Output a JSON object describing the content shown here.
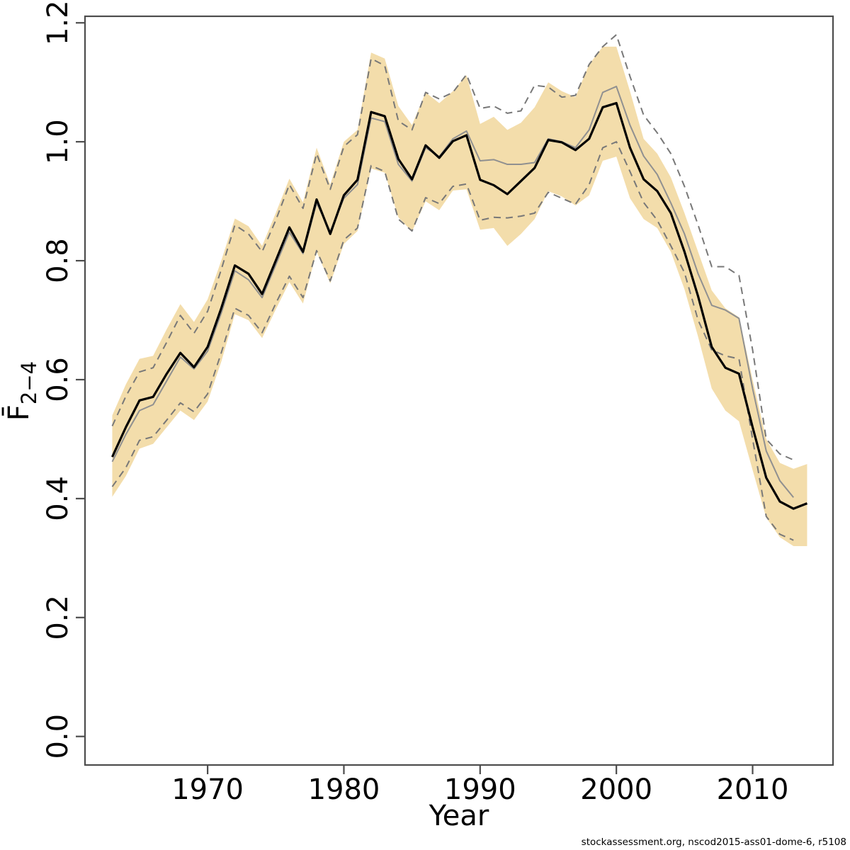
{
  "credit": "stockassessment.org, nscod2015-ass01-dome-6, r5108",
  "chart_data": {
    "type": "line",
    "title": "",
    "xlabel": "Year",
    "ylabel_main": "F̄",
    "ylabel_sub": "2−4",
    "xlim": [
      1961.0,
      2015.9
    ],
    "ylim": [
      -0.048,
      1.211
    ],
    "grid": false,
    "legend_position": "none",
    "x_ticks": [
      1970,
      1980,
      1990,
      2000,
      2010
    ],
    "y_ticks": [
      "0.0",
      "0.2",
      "0.4",
      "0.6",
      "0.8",
      "1.0",
      "1.2"
    ],
    "y_tick_values": [
      0.0,
      0.2,
      0.4,
      0.6,
      0.8,
      1.0,
      1.2
    ],
    "years": [
      1963,
      1964,
      1965,
      1966,
      1967,
      1968,
      1969,
      1970,
      1971,
      1972,
      1973,
      1974,
      1975,
      1976,
      1977,
      1978,
      1979,
      1980,
      1981,
      1982,
      1983,
      1984,
      1985,
      1986,
      1987,
      1988,
      1989,
      1990,
      1991,
      1992,
      1993,
      1994,
      1995,
      1996,
      1997,
      1998,
      1999,
      2000,
      2001,
      2002,
      2003,
      2004,
      2005,
      2006,
      2007,
      2008,
      2009,
      2010,
      2011,
      2012,
      2013,
      2014
    ],
    "band": {
      "name": "confidence band of current estimate",
      "color": "#f3ddab",
      "hi": [
        0.54,
        0.592,
        0.635,
        0.64,
        0.685,
        0.727,
        0.697,
        0.735,
        0.8,
        0.871,
        0.858,
        0.825,
        0.88,
        0.938,
        0.898,
        0.99,
        0.928,
        1.0,
        1.02,
        1.15,
        1.14,
        1.06,
        1.028,
        1.083,
        1.065,
        1.085,
        1.112,
        1.03,
        1.042,
        1.02,
        1.032,
        1.058,
        1.1,
        1.085,
        1.075,
        1.13,
        1.16,
        1.16,
        1.085,
        1.005,
        0.98,
        0.94,
        0.88,
        0.815,
        0.75,
        0.72,
        0.705,
        0.6,
        0.5,
        0.46,
        0.45,
        0.458
      ],
      "lo": [
        0.403,
        0.438,
        0.484,
        0.492,
        0.52,
        0.548,
        0.532,
        0.563,
        0.63,
        0.71,
        0.7,
        0.67,
        0.718,
        0.764,
        0.728,
        0.815,
        0.762,
        0.828,
        0.85,
        0.955,
        0.948,
        0.873,
        0.849,
        0.9,
        0.885,
        0.918,
        0.92,
        0.852,
        0.855,
        0.825,
        0.845,
        0.87,
        0.917,
        0.908,
        0.893,
        0.91,
        0.968,
        0.975,
        0.905,
        0.87,
        0.855,
        0.815,
        0.752,
        0.672,
        0.585,
        0.548,
        0.53,
        0.448,
        0.368,
        0.335,
        0.32,
        0.32
      ]
    },
    "series": [
      {
        "name": "current estimate (black)",
        "color": "#000000",
        "width": 3.2,
        "dash": "",
        "values": [
          0.47,
          0.52,
          0.565,
          0.571,
          0.61,
          0.645,
          0.621,
          0.655,
          0.72,
          0.792,
          0.778,
          0.744,
          0.8,
          0.856,
          0.815,
          0.903,
          0.845,
          0.91,
          0.936,
          1.05,
          1.043,
          0.971,
          0.937,
          0.994,
          0.973,
          1.001,
          1.011,
          0.936,
          0.927,
          0.912,
          0.934,
          0.956,
          1.003,
          0.999,
          0.986,
          1.005,
          1.058,
          1.065,
          0.99,
          0.937,
          0.917,
          0.88,
          0.815,
          0.74,
          0.655,
          0.62,
          0.61,
          0.52,
          0.435,
          0.395,
          0.383,
          0.392
        ]
      },
      {
        "name": "comparison run (gray)",
        "color": "#909090",
        "width": 2,
        "dash": "",
        "values": [
          0.462,
          0.508,
          0.548,
          0.558,
          0.598,
          0.638,
          0.618,
          0.648,
          0.712,
          0.783,
          0.768,
          0.738,
          0.793,
          0.848,
          0.812,
          0.897,
          0.849,
          0.905,
          0.928,
          1.04,
          1.034,
          0.962,
          0.934,
          0.99,
          0.975,
          1.005,
          1.018,
          0.968,
          0.97,
          0.962,
          0.962,
          0.965,
          1.005,
          1.0,
          0.99,
          1.02,
          1.083,
          1.093,
          1.028,
          0.976,
          0.945,
          0.897,
          0.845,
          0.778,
          0.725,
          0.717,
          0.703,
          0.585,
          0.48,
          0.43,
          0.402
        ]
      },
      {
        "name": "comparison upper CI (dashed)",
        "color": "#787878",
        "width": 2,
        "dash": "10,7",
        "values": [
          0.522,
          0.572,
          0.613,
          0.62,
          0.663,
          0.708,
          0.678,
          0.715,
          0.785,
          0.86,
          0.845,
          0.815,
          0.868,
          0.928,
          0.888,
          0.98,
          0.92,
          0.992,
          1.012,
          1.14,
          1.128,
          1.035,
          1.02,
          1.083,
          1.072,
          1.083,
          1.113,
          1.056,
          1.06,
          1.048,
          1.052,
          1.095,
          1.092,
          1.075,
          1.078,
          1.13,
          1.16,
          1.18,
          1.11,
          1.045,
          1.015,
          0.98,
          0.925,
          0.86,
          0.79,
          0.79,
          0.775,
          0.65,
          0.5,
          0.475,
          0.465
        ]
      },
      {
        "name": "comparison lower CI (dashed)",
        "color": "#787878",
        "width": 2,
        "dash": "10,7",
        "values": [
          0.42,
          0.452,
          0.498,
          0.504,
          0.532,
          0.561,
          0.546,
          0.576,
          0.645,
          0.72,
          0.708,
          0.679,
          0.728,
          0.774,
          0.738,
          0.817,
          0.766,
          0.835,
          0.855,
          0.96,
          0.95,
          0.87,
          0.85,
          0.906,
          0.896,
          0.925,
          0.929,
          0.868,
          0.873,
          0.872,
          0.875,
          0.88,
          0.915,
          0.905,
          0.895,
          0.928,
          0.99,
          1.0,
          0.95,
          0.898,
          0.868,
          0.825,
          0.78,
          0.7,
          0.65,
          0.64,
          0.635,
          0.5,
          0.37,
          0.34,
          0.33
        ]
      }
    ]
  },
  "style": {
    "frame_color": "#4d4d4d",
    "tick_color": "#4d4d4d",
    "label_color": "#000000"
  }
}
